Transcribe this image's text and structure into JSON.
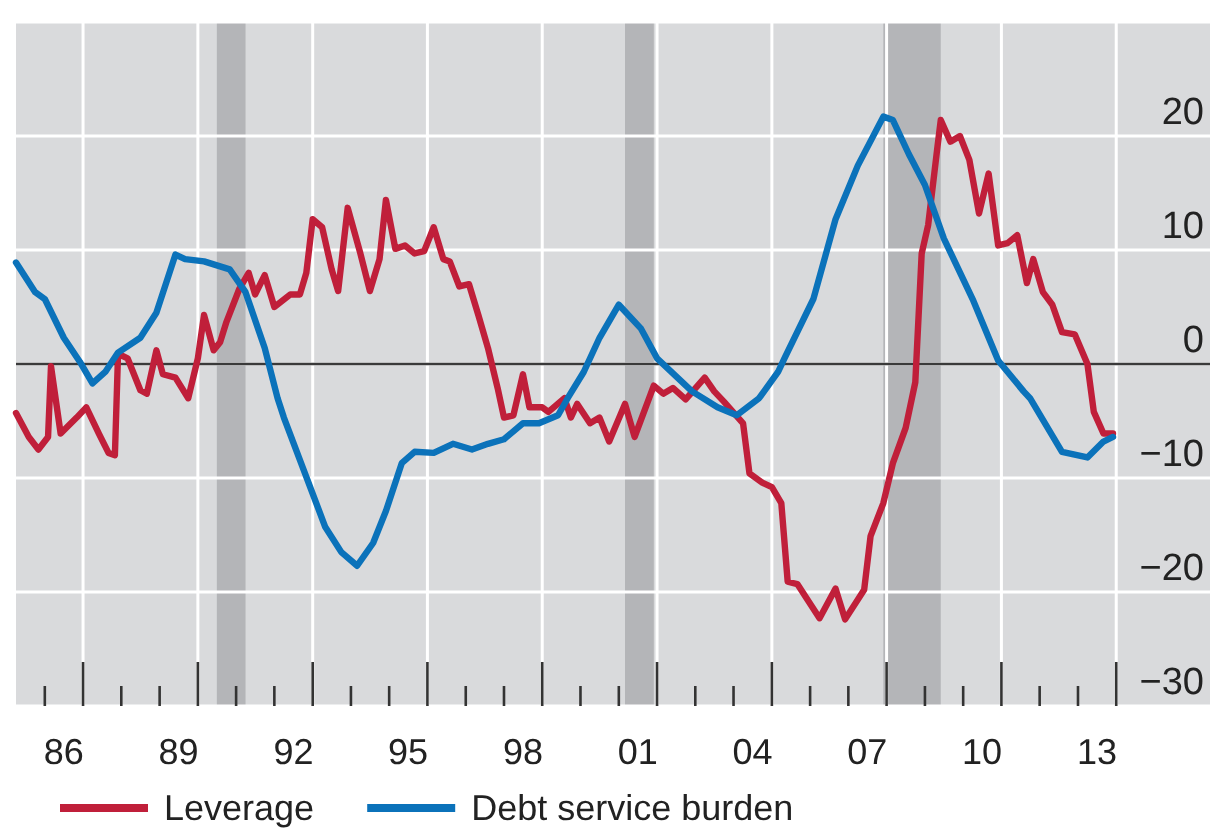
{
  "chart_data": {
    "type": "line",
    "xlim": [
      "1985-04-01",
      "2016-06-14"
    ],
    "ylim": [
      -30,
      30
    ],
    "xticks": [
      {
        "value": "1986-07-01",
        "label": "86"
      },
      {
        "value": "1989-07-01",
        "label": "89"
      },
      {
        "value": "1992-07-01",
        "label": "92"
      },
      {
        "value": "1995-07-01",
        "label": "95"
      },
      {
        "value": "1998-07-01",
        "label": "98"
      },
      {
        "value": "2001-07-01",
        "label": "01"
      },
      {
        "value": "2004-07-01",
        "label": "04"
      },
      {
        "value": "2007-07-01",
        "label": "07"
      },
      {
        "value": "2010-07-01",
        "label": "10"
      },
      {
        "value": "2013-07-01",
        "label": "13"
      },
      {
        "value": "1986",
        "label": null
      },
      {
        "value": "1987",
        "label": null
      },
      {
        "value": "1988",
        "label": null
      },
      {
        "value": "1989",
        "label": null
      },
      {
        "value": "1990",
        "label": null
      },
      {
        "value": "1991",
        "label": null
      },
      {
        "value": "1992",
        "label": null
      },
      {
        "value": "1993",
        "label": null
      },
      {
        "value": "1994",
        "label": null
      },
      {
        "value": "1995",
        "label": null
      },
      {
        "value": "1996",
        "label": null
      },
      {
        "value": "1997",
        "label": null
      },
      {
        "value": "1998",
        "label": null
      },
      {
        "value": "1999",
        "label": null
      },
      {
        "value": "2000",
        "label": null
      },
      {
        "value": "2001",
        "label": null
      },
      {
        "value": "2002",
        "label": null
      },
      {
        "value": "2003",
        "label": null
      },
      {
        "value": "2004",
        "label": null
      },
      {
        "value": "2005",
        "label": null
      },
      {
        "value": "2006",
        "label": null
      },
      {
        "value": "2007",
        "label": null
      },
      {
        "value": "2008",
        "label": null
      },
      {
        "value": "2009",
        "label": null
      },
      {
        "value": "2010",
        "label": null
      },
      {
        "value": "2011",
        "label": null
      },
      {
        "value": "2012",
        "label": null
      },
      {
        "value": "2013",
        "label": null
      },
      {
        "value": "2014",
        "label": null
      }
    ],
    "yticks": [
      -30,
      -20,
      -10,
      0,
      10,
      20,
      {
        "value": 30,
        "label": null
      }
    ],
    "grid": true,
    "legend": "bottom left",
    "line_style": "solid",
    "marker": "none",
    "ref_lines": [
      {
        "axis": "y",
        "value": 0,
        "label": null,
        "color": "#3a3a3a"
      }
    ],
    "bands": [
      {
        "axis": "x",
        "from": "1990-07",
        "to": "1991-04",
        "label": null,
        "color": "#b4b5b8"
      },
      {
        "axis": "x",
        "from": "2001-03",
        "to": "2001-12",
        "label": null,
        "color": "#b4b5b8"
      },
      {
        "axis": "x",
        "from": "2007-12",
        "to": "2009-06",
        "label": null,
        "color": "#b4b5b8"
      }
    ],
    "series": [
      {
        "name": "Leverage",
        "color": "#c01f3a",
        "x": [
          "1985-04",
          "1985-08",
          "1985-11",
          "1986-02",
          "1986-03",
          "1986-06",
          "1986-11",
          "1987-02",
          "1987-06",
          "1987-09",
          "1987-11",
          "1987-12",
          "1988-03",
          "1988-07",
          "1988-09",
          "1988-12",
          "1989-02",
          "1989-06",
          "1989-10",
          "1990-01",
          "1990-03",
          "1990-06",
          "1990-08",
          "1990-10",
          "1991-02",
          "1991-05",
          "1991-07",
          "1991-10",
          "1992-01",
          "1992-06",
          "1992-09",
          "1992-11",
          "1993-01",
          "1993-04",
          "1993-07",
          "1993-09",
          "1993-12",
          "1994-04",
          "1994-07",
          "1994-10",
          "1994-12",
          "1995-03",
          "1995-06",
          "1995-09",
          "1995-12",
          "1996-03",
          "1996-06",
          "1996-08",
          "1996-11",
          "1997-02",
          "1997-05",
          "1997-08",
          "1997-11",
          "1998-01",
          "1998-04",
          "1998-07",
          "1998-09",
          "1999-01",
          "1999-03",
          "1999-08",
          "1999-10",
          "1999-12",
          "2000-04",
          "2000-07",
          "2000-10",
          "2001-03",
          "2001-06",
          "2001-12",
          "2002-03",
          "2002-06",
          "2002-10",
          "2003-04",
          "2003-07",
          "2003-10",
          "2004-04",
          "2004-06",
          "2004-10",
          "2005-01",
          "2005-04",
          "2005-06",
          "2005-09",
          "2006-04",
          "2006-09",
          "2006-12",
          "2007-06",
          "2007-08",
          "2007-12",
          "2008-03",
          "2008-07",
          "2008-10",
          "2008-12",
          "2009-02",
          "2009-05",
          "2009-06",
          "2009-09",
          "2009-12",
          "2010-03",
          "2010-06",
          "2010-09",
          "2010-12",
          "2011-03",
          "2011-06",
          "2011-09",
          "2011-11",
          "2012-02",
          "2012-05",
          "2012-08",
          "2012-12",
          "2013-04",
          "2013-06",
          "2013-09",
          "2013-12"
        ],
        "values": [
          -4.3,
          -6.4,
          -7.5,
          -6.4,
          -0.2,
          -6.1,
          -4.7,
          -3.8,
          -6.1,
          -7.8,
          -8.0,
          0.9,
          0.5,
          -2.3,
          -2.6,
          1.2,
          -0.9,
          -1.2,
          -3.0,
          0.5,
          4.3,
          1.2,
          1.9,
          3.7,
          6.6,
          8.0,
          6.1,
          7.8,
          5.0,
          6.1,
          6.1,
          8.0,
          12.7,
          12.0,
          8.3,
          6.4,
          13.7,
          9.7,
          6.4,
          9.2,
          14.4,
          10.1,
          10.4,
          9.7,
          9.9,
          12.0,
          9.2,
          9.0,
          6.8,
          7.0,
          4.3,
          1.4,
          -2.1,
          -4.7,
          -4.5,
          -0.9,
          -3.8,
          -3.8,
          -4.2,
          -3.0,
          -4.7,
          -3.5,
          -5.2,
          -4.7,
          -6.8,
          -3.5,
          -6.4,
          -1.9,
          -2.6,
          -2.1,
          -3.1,
          -1.2,
          -2.4,
          -3.3,
          -5.2,
          -9.6,
          -10.4,
          -10.8,
          -12.2,
          -19.1,
          -19.3,
          -22.3,
          -19.7,
          -22.4,
          -19.8,
          -15.1,
          -12.2,
          -8.7,
          -5.6,
          -1.6,
          9.7,
          12.2,
          19.1,
          21.4,
          19.5,
          20.0,
          17.9,
          13.2,
          16.7,
          10.4,
          10.6,
          11.3,
          7.1,
          9.2,
          6.3,
          5.2,
          2.8,
          2.6,
          0,
          -4.2,
          -6.1,
          -6.1
        ]
      },
      {
        "name": "Debt service burden",
        "color": "#0b72ba",
        "x": [
          "1985-04",
          "1985-10",
          "1986-01",
          "1986-07",
          "1986-12",
          "1987-04",
          "1987-08",
          "1987-12",
          "1988-07",
          "1988-12",
          "1989-06",
          "1989-09",
          "1990-03",
          "1990-11",
          "1991-04",
          "1991-10",
          "1992-02",
          "1992-04",
          "1992-11",
          "1993-05",
          "1993-10",
          "1994-03",
          "1994-08",
          "1994-12",
          "1995-05",
          "1995-09",
          "1996-03",
          "1996-09",
          "1997-03",
          "1997-08",
          "1998-01",
          "1998-07",
          "1998-12",
          "1999-06",
          "1999-09",
          "2000-02",
          "2000-07",
          "2001-01",
          "2001-08",
          "2002-01",
          "2002-12",
          "2003-08",
          "2004-02",
          "2004-09",
          "2005-03",
          "2005-05",
          "2006-02",
          "2006-09",
          "2007-04",
          "2007-12",
          "2008-03",
          "2008-08",
          "2009-01",
          "2009-07",
          "2010-04",
          "2010-12",
          "2011-08",
          "2011-10",
          "2012-08",
          "2013-04",
          "2013-09",
          "2013-12"
        ],
        "values": [
          8.9,
          6.3,
          5.7,
          2.3,
          0.2,
          -1.7,
          -0.7,
          1.0,
          2.3,
          4.5,
          9.6,
          9.2,
          9.0,
          8.3,
          6.3,
          1.4,
          -3.0,
          -4.7,
          -9.9,
          -14.3,
          -16.5,
          -17.7,
          -15.7,
          -12.9,
          -8.7,
          -7.7,
          -7.8,
          -7.0,
          -7.5,
          -7.0,
          -6.6,
          -5.2,
          -5.2,
          -4.5,
          -3.0,
          -0.7,
          2.3,
          5.2,
          3.1,
          0.5,
          -2.4,
          -3.8,
          -4.5,
          -3.0,
          -0.7,
          0.5,
          5.7,
          12.7,
          17.4,
          21.7,
          21.4,
          18.4,
          15.7,
          11.0,
          5.7,
          0.3,
          -2.4,
          -3.0,
          -7.7,
          -8.2,
          -6.8,
          -6.4
        ]
      }
    ]
  }
}
